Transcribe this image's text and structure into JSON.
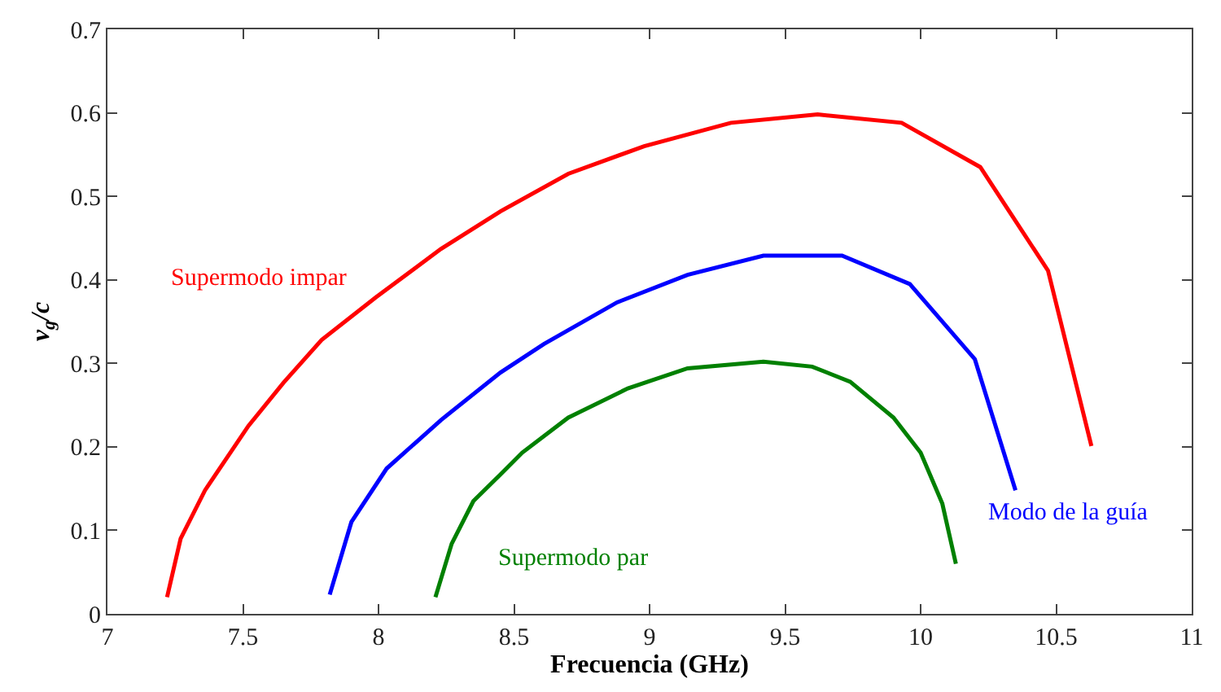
{
  "chart_data": {
    "type": "line",
    "xlabel": "Frecuencia (GHz)",
    "ylabel": "v$_{g}$/c",
    "xlim": [
      7,
      11
    ],
    "xticks": [
      7,
      7.5,
      8,
      8.5,
      9,
      9.5,
      10,
      10.5,
      11
    ],
    "ylim": [
      0,
      0.7
    ],
    "yticks": [
      0,
      0.1,
      0.2,
      0.3,
      0.4,
      0.5,
      0.6,
      0.7
    ],
    "grid": false,
    "legend": false,
    "marker": "none",
    "line_style": "solid",
    "series": [
      {
        "name": "Supermodo impar",
        "color": "#ff0000",
        "x": [
          7.22,
          7.27,
          7.36,
          7.52,
          7.65,
          7.79,
          7.99,
          8.23,
          8.45,
          8.7,
          8.98,
          9.3,
          9.62,
          9.93,
          10.22,
          10.47,
          10.63
        ],
        "values": [
          0.02,
          0.09,
          0.148,
          0.225,
          0.277,
          0.328,
          0.379,
          0.437,
          0.482,
          0.527,
          0.56,
          0.588,
          0.598,
          0.588,
          0.535,
          0.411,
          0.201
        ]
      },
      {
        "name": "Modo de la guía",
        "color": "#0000ff",
        "x": [
          7.82,
          7.9,
          8.03,
          8.23,
          8.45,
          8.61,
          8.88,
          9.14,
          9.42,
          9.71,
          9.96,
          10.2,
          10.35
        ],
        "values": [
          0.023,
          0.11,
          0.174,
          0.232,
          0.289,
          0.323,
          0.373,
          0.406,
          0.429,
          0.429,
          0.395,
          0.305,
          0.148
        ]
      },
      {
        "name": "Supermodo par",
        "color": "#008000",
        "x": [
          8.21,
          8.27,
          8.35,
          8.45,
          8.53,
          8.7,
          8.92,
          9.14,
          9.42,
          9.6,
          9.74,
          9.9,
          10.0,
          10.08,
          10.13
        ],
        "values": [
          0.02,
          0.084,
          0.135,
          0.167,
          0.193,
          0.235,
          0.27,
          0.294,
          0.302,
          0.296,
          0.278,
          0.235,
          0.193,
          0.132,
          0.06
        ]
      }
    ]
  }
}
